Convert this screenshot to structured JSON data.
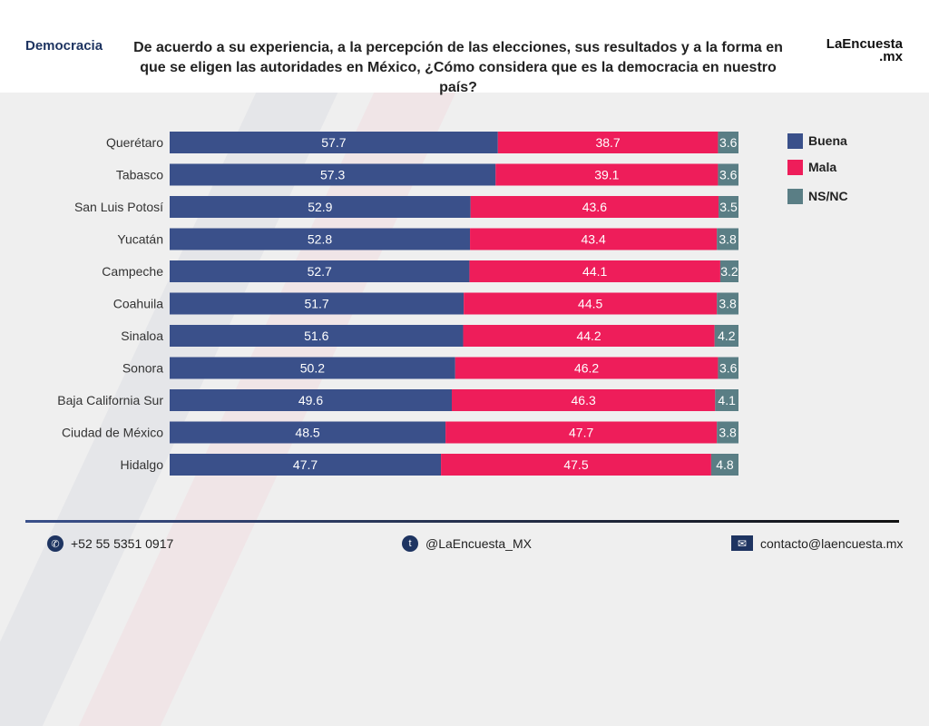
{
  "header": {
    "section": "Democracia",
    "question": "De acuerdo a su experiencia, a la percepción de las elecciones, sus resultados y a la forma en que se eligen las autoridades en México, ¿Cómo considera que es la democracia en nuestro país?",
    "logo": "LaEncuesta",
    "logo_sub": ".mx"
  },
  "chart_data": {
    "type": "bar",
    "stacked": true,
    "orientation": "horizontal",
    "categories": [
      "Querétaro",
      "Tabasco",
      "San Luis Potosí",
      "Yucatán",
      "Campeche",
      "Coahuila",
      "Sinaloa",
      "Sonora",
      "Baja California Sur",
      "Ciudad de México",
      "Hidalgo"
    ],
    "series": [
      {
        "name": "Buena",
        "color": "#3a508a",
        "values": [
          57.7,
          57.3,
          52.9,
          52.8,
          52.7,
          51.7,
          51.6,
          50.2,
          49.6,
          48.5,
          47.7
        ]
      },
      {
        "name": "Mala",
        "color": "#ee1d5a",
        "values": [
          38.7,
          39.1,
          43.6,
          43.4,
          44.1,
          44.5,
          44.2,
          46.2,
          46.3,
          47.7,
          47.5
        ]
      },
      {
        "name": "NS/NC",
        "color": "#5a7e85",
        "values": [
          3.6,
          3.6,
          3.5,
          3.8,
          3.2,
          3.8,
          4.2,
          3.6,
          4.1,
          3.8,
          4.8
        ]
      }
    ],
    "legend": "right",
    "grid": false
  },
  "footer": {
    "phone": "+52 55 5351 0917",
    "twitter": "@LaEncuesta_MX",
    "email": "contacto@laencuesta.mx"
  }
}
